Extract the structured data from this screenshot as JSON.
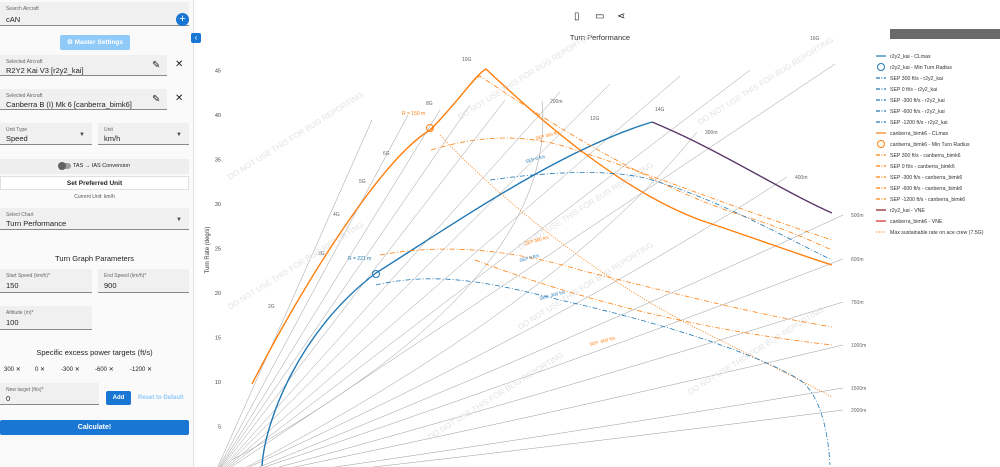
{
  "sidebar": {
    "search": {
      "label": "Search Aircraft",
      "value": "cAN"
    },
    "master_settings": "Master Settings",
    "selected1": {
      "label": "Selected Aircraft",
      "value": "R2Y2 Kai V3 [r2y2_kai]"
    },
    "selected2": {
      "label": "Selected Aircraft",
      "value": "Canberra B (I) Mk 6 [canberra_bimk6]"
    },
    "unit_type": {
      "label": "Unit Type",
      "value": "Speed"
    },
    "unit": {
      "label": "Unit",
      "value": "km/h"
    },
    "tas_ias": "TAS → IAS Conversion",
    "set_pref": "Set Preferred Unit",
    "current_unit": "Current Unit: km/h",
    "select_chart": {
      "label": "Select Chart",
      "value": "Turn Performance"
    },
    "turn_params_title": "Turn Graph Parameters",
    "start_speed": {
      "label": "Start Speed (km/h)*",
      "value": "150"
    },
    "end_speed": {
      "label": "End Speed (km/h)*",
      "value": "900"
    },
    "altitude": {
      "label": "Altitude (m)*",
      "value": "100"
    },
    "sep_title": "Specific excess power targets (ft/s)",
    "chips": [
      "300",
      "0",
      "-300",
      "-600",
      "-1200"
    ],
    "new_target": {
      "label": "New target (ft/s)*",
      "value": "0"
    },
    "add": "Add",
    "reset": "Reset to Default",
    "calculate": "Calculate!"
  },
  "chart_data": {
    "type": "line",
    "title": "Turn Performance",
    "ylabel": "Turn Rate (deg/s)",
    "ylim": [
      0,
      47
    ],
    "yticks": [
      5,
      10,
      15,
      20,
      25,
      30,
      35,
      40,
      45
    ],
    "watermark": "DO NOT USE THIS FOR BUG REPORTING",
    "g_labels": [
      "2G",
      "3G",
      "4G",
      "5G",
      "6G",
      "8G",
      "10G",
      "12G",
      "14G",
      "16G"
    ],
    "radius_labels": [
      "200m",
      "300m",
      "400m",
      "500m",
      "600m",
      "750m",
      "1000m",
      "1500m",
      "2000m"
    ],
    "annotations": [
      "R = 150 m",
      "R = 221 m"
    ],
    "sep_curve_labels": [
      "SEP 0 ft/s",
      "SEP 300 ft/s",
      "SEP 0 ft/s",
      "SEP 300 ft/s",
      "SEP -300 ft/s",
      "SEP -600 ft/s"
    ],
    "legend": [
      {
        "label": "r2y2_kai - CLmax",
        "color": "#1f77b4",
        "style": "solid"
      },
      {
        "label": "r2y2_kai - Min Turn Radius",
        "color": "#1f77b4",
        "style": "circle"
      },
      {
        "label": "SEP 300 ft/s - r2y2_kai",
        "color": "#1f77b4",
        "style": "dashdot"
      },
      {
        "label": "SEP 0 ft/s - r2y2_kai",
        "color": "#1f77b4",
        "style": "dashdot"
      },
      {
        "label": "SEP -300 ft/s - r2y2_kai",
        "color": "#1f77b4",
        "style": "dashdot"
      },
      {
        "label": "SEP -600 ft/s - r2y2_kai",
        "color": "#1f77b4",
        "style": "dashdot"
      },
      {
        "label": "SEP -1200 ft/s - r2y2_kai",
        "color": "#1f77b4",
        "style": "dashdot"
      },
      {
        "label": "canberra_bimk6 - CLmax",
        "color": "#ff7f0e",
        "style": "solid"
      },
      {
        "label": "canberra_bimk6 - Min Turn Radius",
        "color": "#ff7f0e",
        "style": "circle"
      },
      {
        "label": "SEP 300 ft/s - canberra_bimk6",
        "color": "#ff7f0e",
        "style": "dashdot"
      },
      {
        "label": "SEP 0 ft/s - canberra_bimk6",
        "color": "#ff7f0e",
        "style": "dashdot"
      },
      {
        "label": "SEP -300 ft/s - canberra_bimk6",
        "color": "#ff7f0e",
        "style": "dashdot"
      },
      {
        "label": "SEP -600 ft/s - canberra_bimk6",
        "color": "#ff7f0e",
        "style": "dashdot"
      },
      {
        "label": "SEP -1200 ft/s - canberra_bimk6",
        "color": "#ff7f0e",
        "style": "dashdot"
      },
      {
        "label": "r2y2_kai - VNE",
        "color": "#8b1a1a",
        "style": "solid"
      },
      {
        "label": "canberra_bimk6 - VNE",
        "color": "#d62728",
        "style": "solid"
      },
      {
        "label": "Max sustainable rate on ace crew (7.5G)",
        "color": "#ff7f0e",
        "style": "dotted"
      }
    ]
  }
}
